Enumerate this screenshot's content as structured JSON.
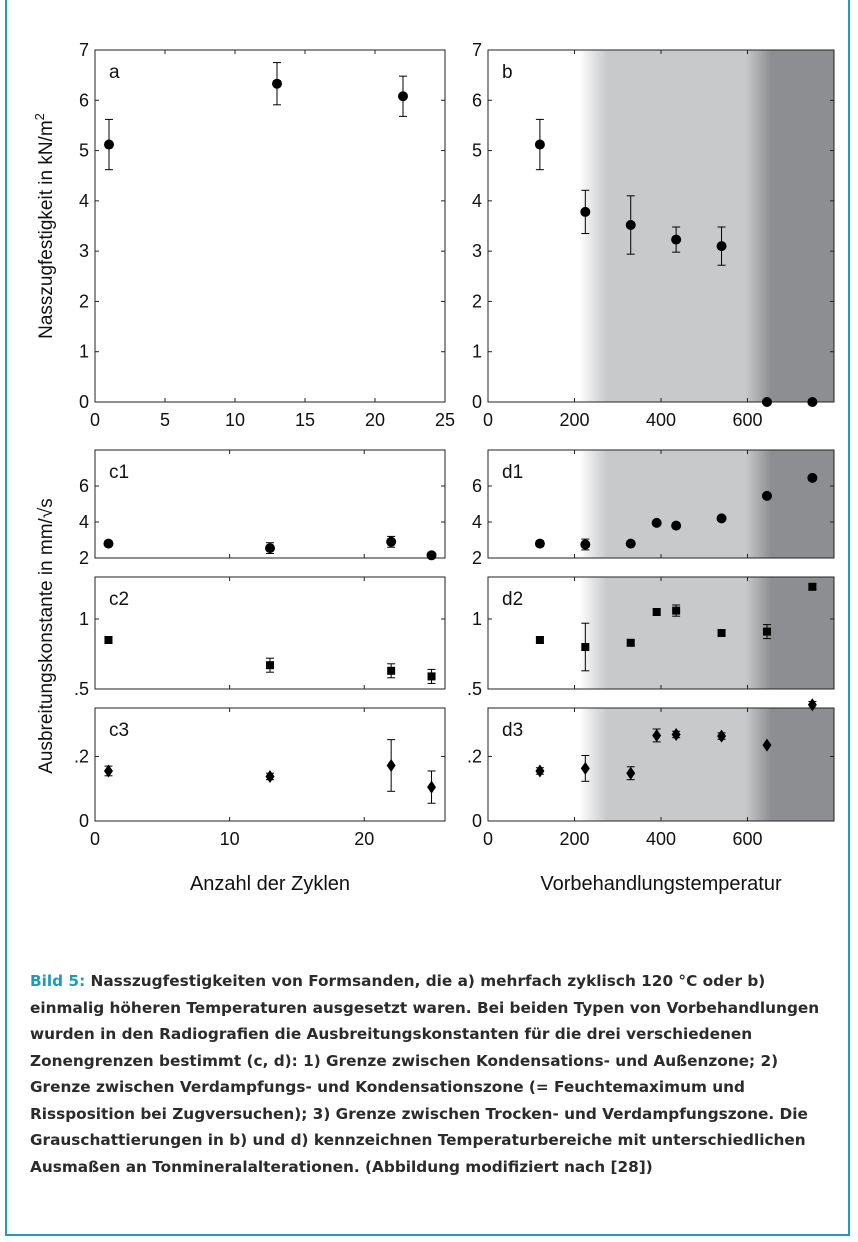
{
  "colors": {
    "accent": "#1e9bb5",
    "shade_light": "#c8c9cb",
    "shade_dark": "#8d8e91",
    "marker": "#000000"
  },
  "caption": {
    "label": "Bild 5:",
    "text": "Nasszugfestigkeiten von Formsanden, die a) mehrfach zyklisch 120 °C oder b) einmalig höheren Temperaturen ausgesetzt waren. Bei beiden Typen von Vorbehandlungen wurden in den Radiografien die Ausbreitungskonstanten für die drei verschiedenen Zonengrenzen bestimmt (c, d): 1) Grenze zwischen Kondensations- und Außenzone; 2) Grenze zwischen Verdampfungs- und Kondensationszone (= Feuchtemaximum und Rissposition bei Zugversuchen); 3) Grenze zwischen Trocken- und Verdampfungszone. Die Grauschattierungen in b) und d) kennzeichnen Temperaturbereiche mit unterschiedlichen Ausmaßen an Tonmineralalterationen. (Abbildung modifiziert nach [28])"
  },
  "axis_labels": {
    "top_ylabel_main": "Nasszugfestigkeit in kN/m",
    "top_ylabel_sup": "2",
    "bottom_ylabel": "Ausbreitungskonstante in mm/√s",
    "left_xlabel": "Anzahl der Zyklen",
    "right_xlabel": "Vorbehandlungstemperatur"
  },
  "chart_data": [
    {
      "panel": "a",
      "type": "scatter",
      "marker": "circle",
      "shaded": false,
      "xlim": [
        0,
        25
      ],
      "ylim": [
        0,
        7
      ],
      "xticks": [
        0,
        5,
        10,
        15,
        20,
        25
      ],
      "xtick_labels": [
        "0",
        "5",
        "10",
        "15",
        "20",
        "25"
      ],
      "yticks": [
        0,
        1,
        2,
        3,
        4,
        5,
        6,
        7
      ],
      "ytick_labels": [
        "0",
        "1",
        "2",
        "3",
        "4",
        "5",
        "6",
        "7"
      ],
      "points": [
        {
          "x": 1,
          "y": 5.12,
          "err": 0.5
        },
        {
          "x": 13,
          "y": 6.33,
          "err": 0.42
        },
        {
          "x": 22,
          "y": 6.08,
          "err": 0.4
        }
      ]
    },
    {
      "panel": "b",
      "type": "scatter",
      "marker": "circle",
      "shaded": true,
      "xlim": [
        0,
        800
      ],
      "ylim": [
        0,
        7
      ],
      "xticks": [
        0,
        200,
        400,
        600
      ],
      "xtick_labels": [
        "0",
        "200",
        "400",
        "600"
      ],
      "yticks": [
        0,
        1,
        2,
        3,
        4,
        5,
        6,
        7
      ],
      "ytick_labels": [
        "0",
        "1",
        "2",
        "3",
        "4",
        "5",
        "6",
        "7"
      ],
      "points": [
        {
          "x": 120,
          "y": 5.12,
          "err": 0.5
        },
        {
          "x": 225,
          "y": 3.78,
          "err": 0.43
        },
        {
          "x": 330,
          "y": 3.52,
          "err": 0.58
        },
        {
          "x": 435,
          "y": 3.23,
          "err": 0.25
        },
        {
          "x": 540,
          "y": 3.1,
          "err": 0.38
        },
        {
          "x": 645,
          "y": 0,
          "err": 0
        },
        {
          "x": 750,
          "y": 0,
          "err": 0
        }
      ]
    },
    {
      "panel": "c1",
      "type": "scatter",
      "marker": "circle",
      "shaded": false,
      "xlim": [
        0,
        26
      ],
      "ylim": [
        2,
        8
      ],
      "xticks": [
        0,
        10,
        20
      ],
      "xtick_labels": [],
      "yticks": [
        2,
        4,
        6
      ],
      "ytick_labels": [
        "2",
        "4",
        "6"
      ],
      "points": [
        {
          "x": 1,
          "y": 2.8,
          "err": 0.15
        },
        {
          "x": 13,
          "y": 2.55,
          "err": 0.3
        },
        {
          "x": 22,
          "y": 2.9,
          "err": 0.3
        },
        {
          "x": 25,
          "y": 2.15,
          "err": 0.15
        }
      ]
    },
    {
      "panel": "d1",
      "type": "scatter",
      "marker": "circle",
      "shaded": true,
      "xlim": [
        0,
        800
      ],
      "ylim": [
        2,
        8
      ],
      "xticks": [
        0,
        200,
        400,
        600
      ],
      "xtick_labels": [],
      "yticks": [
        2,
        4,
        6
      ],
      "ytick_labels": [
        "2",
        "4",
        "6"
      ],
      "points": [
        {
          "x": 120,
          "y": 2.8,
          "err": 0.15
        },
        {
          "x": 225,
          "y": 2.75,
          "err": 0.3
        },
        {
          "x": 330,
          "y": 2.8,
          "err": 0.1
        },
        {
          "x": 390,
          "y": 3.95,
          "err": 0
        },
        {
          "x": 435,
          "y": 3.8,
          "err": 0
        },
        {
          "x": 540,
          "y": 4.2,
          "err": 0
        },
        {
          "x": 645,
          "y": 5.45,
          "err": 0
        },
        {
          "x": 750,
          "y": 6.45,
          "err": 0
        }
      ]
    },
    {
      "panel": "c2",
      "type": "scatter",
      "marker": "square",
      "shaded": false,
      "xlim": [
        0,
        26
      ],
      "ylim": [
        0.5,
        1.3
      ],
      "xticks": [
        0,
        10,
        20
      ],
      "xtick_labels": [],
      "yticks": [
        0.5,
        1
      ],
      "ytick_labels": [
        ".5",
        "1"
      ],
      "points": [
        {
          "x": 1,
          "y": 0.85,
          "err": 0.02
        },
        {
          "x": 13,
          "y": 0.67,
          "err": 0.05
        },
        {
          "x": 22,
          "y": 0.63,
          "err": 0.05
        },
        {
          "x": 25,
          "y": 0.59,
          "err": 0.05
        }
      ]
    },
    {
      "panel": "d2",
      "type": "scatter",
      "marker": "square",
      "shaded": true,
      "xlim": [
        0,
        800
      ],
      "ylim": [
        0.5,
        1.3
      ],
      "xticks": [
        0,
        200,
        400,
        600
      ],
      "xtick_labels": [],
      "yticks": [
        0.5,
        1
      ],
      "ytick_labels": [
        ".5",
        "1"
      ],
      "points": [
        {
          "x": 120,
          "y": 0.85,
          "err": 0.02
        },
        {
          "x": 225,
          "y": 0.8,
          "err": 0.17
        },
        {
          "x": 330,
          "y": 0.83,
          "err": 0.02
        },
        {
          "x": 390,
          "y": 1.05,
          "err": 0.02
        },
        {
          "x": 435,
          "y": 1.06,
          "err": 0.04
        },
        {
          "x": 540,
          "y": 0.9,
          "err": 0.02
        },
        {
          "x": 645,
          "y": 0.91,
          "err": 0.05
        },
        {
          "x": 750,
          "y": 1.23,
          "err": 0.02
        }
      ]
    },
    {
      "panel": "c3",
      "type": "scatter",
      "marker": "diamond",
      "shaded": false,
      "xlim": [
        0,
        26
      ],
      "ylim": [
        0,
        0.35
      ],
      "xticks": [
        0,
        10,
        20
      ],
      "xtick_labels": [
        "0",
        "10",
        "20"
      ],
      "yticks": [
        0,
        0.2
      ],
      "ytick_labels": [
        "0",
        ".2"
      ],
      "points": [
        {
          "x": 1,
          "y": 0.155,
          "err": 0.015
        },
        {
          "x": 13,
          "y": 0.138,
          "err": 0.01
        },
        {
          "x": 22,
          "y": 0.172,
          "err": 0.08
        },
        {
          "x": 25,
          "y": 0.105,
          "err": 0.05
        }
      ]
    },
    {
      "panel": "d3",
      "type": "scatter",
      "marker": "diamond",
      "shaded": true,
      "xlim": [
        0,
        800
      ],
      "ylim": [
        0,
        0.35
      ],
      "xticks": [
        0,
        200,
        400,
        600
      ],
      "xtick_labels": [
        "0",
        "200",
        "400",
        "600"
      ],
      "yticks": [
        0,
        0.2
      ],
      "ytick_labels": [
        "0",
        ".2"
      ],
      "points": [
        {
          "x": 120,
          "y": 0.155,
          "err": 0.01
        },
        {
          "x": 225,
          "y": 0.163,
          "err": 0.04
        },
        {
          "x": 330,
          "y": 0.148,
          "err": 0.02
        },
        {
          "x": 390,
          "y": 0.265,
          "err": 0.02
        },
        {
          "x": 435,
          "y": 0.268,
          "err": 0.01
        },
        {
          "x": 540,
          "y": 0.263,
          "err": 0.01
        },
        {
          "x": 645,
          "y": 0.235,
          "err": 0
        },
        {
          "x": 750,
          "y": 0.36,
          "err": 0.01
        }
      ]
    }
  ]
}
